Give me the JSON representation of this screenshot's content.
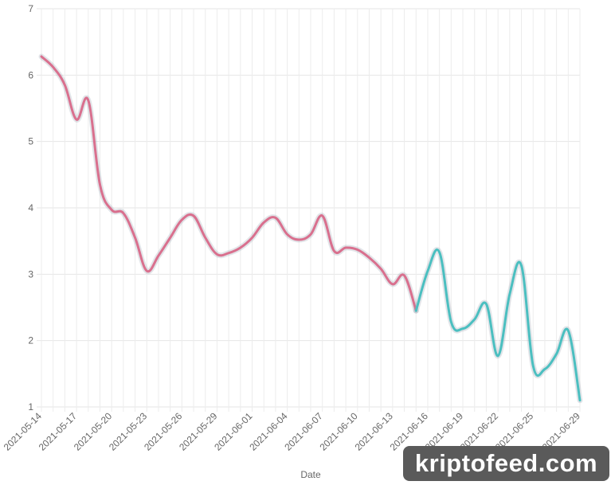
{
  "chart_data": {
    "type": "line",
    "xlabel": "Date",
    "ylabel": "",
    "ylim": [
      1,
      7
    ],
    "yticks": [
      1,
      2,
      3,
      4,
      5,
      6,
      7
    ],
    "xticks": [
      "2021-05-14",
      "2021-05-17",
      "2021-05-20",
      "2021-05-23",
      "2021-05-26",
      "2021-05-29",
      "2021-06-01",
      "2021-06-04",
      "2021-06-07",
      "2021-06-10",
      "2021-06-13",
      "2021-06-16",
      "2021-06-19",
      "2021-06-22",
      "2021-06-25",
      "2021-06-29"
    ],
    "grid": true,
    "series": [
      {
        "color": "#d9708e",
        "points": [
          [
            "2021-05-14",
            6.28
          ],
          [
            "2021-05-15",
            6.12
          ],
          [
            "2021-05-16",
            5.85
          ],
          [
            "2021-05-17",
            5.33
          ],
          [
            "2021-05-18",
            5.62
          ],
          [
            "2021-05-19",
            4.35
          ],
          [
            "2021-05-20",
            3.97
          ],
          [
            "2021-05-21",
            3.92
          ],
          [
            "2021-05-22",
            3.55
          ],
          [
            "2021-05-23",
            3.05
          ],
          [
            "2021-05-24",
            3.28
          ],
          [
            "2021-05-25",
            3.55
          ],
          [
            "2021-05-26",
            3.82
          ],
          [
            "2021-05-27",
            3.88
          ],
          [
            "2021-05-28",
            3.55
          ],
          [
            "2021-05-29",
            3.3
          ],
          [
            "2021-05-30",
            3.32
          ],
          [
            "2021-05-31",
            3.4
          ],
          [
            "2021-06-01",
            3.55
          ],
          [
            "2021-06-02",
            3.78
          ],
          [
            "2021-06-03",
            3.85
          ],
          [
            "2021-06-04",
            3.6
          ],
          [
            "2021-06-05",
            3.52
          ],
          [
            "2021-06-06",
            3.6
          ],
          [
            "2021-06-07",
            3.88
          ],
          [
            "2021-06-08",
            3.35
          ],
          [
            "2021-06-09",
            3.4
          ],
          [
            "2021-06-10",
            3.37
          ],
          [
            "2021-06-11",
            3.25
          ],
          [
            "2021-06-12",
            3.08
          ],
          [
            "2021-06-13",
            2.85
          ],
          [
            "2021-06-14",
            2.98
          ],
          [
            "2021-06-15",
            2.45
          ]
        ]
      },
      {
        "color": "#4bbfc0",
        "points": [
          [
            "2021-06-15",
            2.45
          ],
          [
            "2021-06-16",
            3.05
          ],
          [
            "2021-06-17",
            3.33
          ],
          [
            "2021-06-18",
            2.28
          ],
          [
            "2021-06-19",
            2.18
          ],
          [
            "2021-06-20",
            2.32
          ],
          [
            "2021-06-21",
            2.55
          ],
          [
            "2021-06-22",
            1.77
          ],
          [
            "2021-06-23",
            2.7
          ],
          [
            "2021-06-24",
            3.13
          ],
          [
            "2021-06-25",
            1.62
          ],
          [
            "2021-06-26",
            1.57
          ],
          [
            "2021-06-27",
            1.8
          ],
          [
            "2021-06-28",
            2.15
          ],
          [
            "2021-06-29",
            1.1
          ]
        ]
      }
    ]
  },
  "watermark": {
    "text": "kriptofeed.com"
  }
}
